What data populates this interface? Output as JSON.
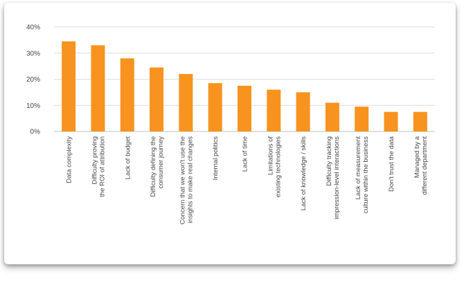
{
  "chart_data": {
    "type": "bar",
    "title": "",
    "xlabel": "",
    "ylabel": "",
    "ylim": [
      0,
      40
    ],
    "yticks": [
      "0%",
      "10%",
      "20%",
      "30%",
      "40%"
    ],
    "grid": true,
    "bar_color": "#f7931e",
    "categories": [
      [
        "Data complexity"
      ],
      [
        "Difficulty proving",
        "the ROI of attribution"
      ],
      [
        "Lack of budget"
      ],
      [
        "Difficulty defining the",
        "consumer journey"
      ],
      [
        "Concern that we won't use the",
        "insights to make real changes"
      ],
      [
        "Internal politics"
      ],
      [
        "Lack of time"
      ],
      [
        "Limitations of",
        "existing technologies"
      ],
      [
        "Lack of knowledge / skills"
      ],
      [
        "Difficulty tracking",
        "impression-level interactions"
      ],
      [
        "Lack of measurement",
        "culture within the business"
      ],
      [
        "Don't trust the data"
      ],
      [
        "Managed by a",
        "different department"
      ]
    ],
    "values": [
      34.5,
      33,
      28,
      24.5,
      22,
      18.5,
      17.5,
      16,
      15,
      11,
      9.5,
      7.5,
      7.5
    ]
  }
}
